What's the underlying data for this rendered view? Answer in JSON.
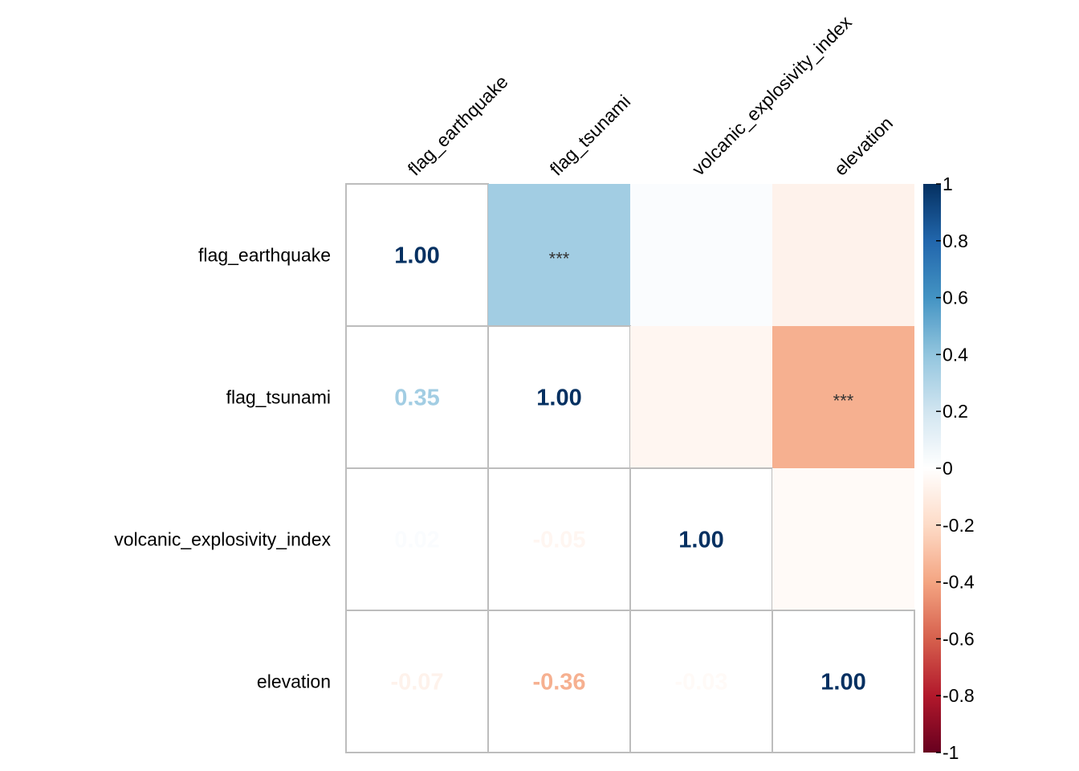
{
  "chart_data": {
    "type": "heatmap",
    "variables": [
      "flag_earthquake",
      "flag_tsunami",
      "volcanic_explosivity_index",
      "elevation"
    ],
    "matrix": [
      [
        1.0,
        0.35,
        0.02,
        -0.07
      ],
      [
        0.35,
        1.0,
        -0.05,
        -0.36
      ],
      [
        0.02,
        -0.05,
        1.0,
        -0.03
      ],
      [
        -0.07,
        -0.36,
        -0.03,
        1.0
      ]
    ],
    "lower_labels": [
      [
        "1.00",
        "",
        "",
        ""
      ],
      [
        "0.35",
        "1.00",
        "",
        ""
      ],
      [
        "0.02",
        "-0.05",
        "1.00",
        ""
      ],
      [
        "-0.07",
        "-0.36",
        "-0.03",
        "1.00"
      ]
    ],
    "upper_significance": [
      [
        "",
        "***",
        "",
        ""
      ],
      [
        "",
        "",
        "",
        "***"
      ],
      [
        "",
        "",
        "",
        ""
      ],
      [
        "",
        "",
        "",
        ""
      ]
    ],
    "colorbar": {
      "range": [
        -1,
        1
      ],
      "ticks": [
        "1",
        "0.8",
        "0.6",
        "0.4",
        "0.2",
        "0",
        "-0.2",
        "-0.4",
        "-0.6",
        "-0.8",
        "-1"
      ]
    }
  }
}
